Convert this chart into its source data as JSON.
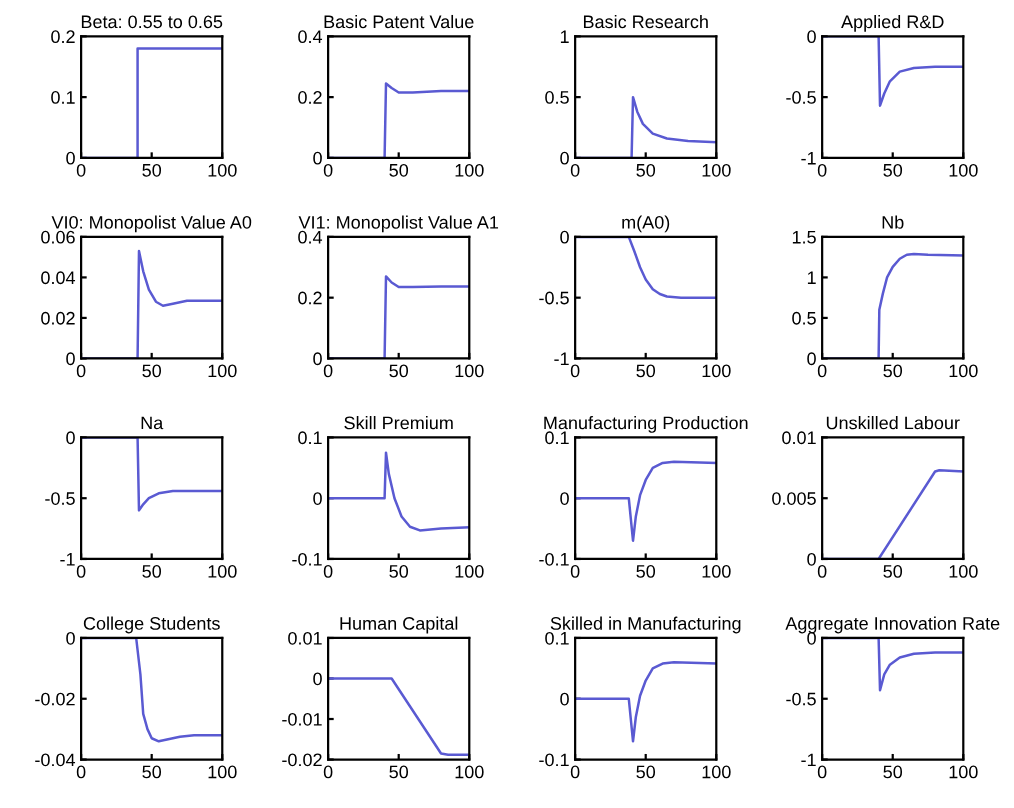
{
  "chart_data": [
    {
      "type": "line",
      "title": "Beta: 0.55 to 0.65",
      "x": [
        0,
        40,
        40,
        100
      ],
      "series": [
        {
          "color": "#5a5ad2",
          "values": [
            0,
            0,
            0.18,
            0.18
          ]
        }
      ],
      "xlim": [
        0,
        100
      ],
      "xticks": [
        0,
        50,
        100
      ],
      "ylim": [
        0,
        0.2
      ],
      "yticks": [
        0,
        0.1,
        0.2
      ]
    },
    {
      "type": "line",
      "title": "Basic Patent Value",
      "x": [
        0,
        40,
        41,
        45,
        50,
        60,
        80,
        100
      ],
      "series": [
        {
          "color": "#5a5ad2",
          "values": [
            0,
            0,
            0.245,
            0.23,
            0.215,
            0.215,
            0.22,
            0.22
          ]
        }
      ],
      "xlim": [
        0,
        100
      ],
      "xticks": [
        0,
        50,
        100
      ],
      "ylim": [
        0,
        0.4
      ],
      "yticks": [
        0,
        0.2,
        0.4
      ]
    },
    {
      "type": "line",
      "title": "Basic Research",
      "x": [
        0,
        40,
        41,
        44,
        48,
        55,
        65,
        80,
        100
      ],
      "series": [
        {
          "color": "#5a5ad2",
          "values": [
            0,
            0,
            0.5,
            0.38,
            0.28,
            0.2,
            0.16,
            0.14,
            0.13
          ]
        }
      ],
      "xlim": [
        0,
        100
      ],
      "xticks": [
        0,
        50,
        100
      ],
      "ylim": [
        0,
        1
      ],
      "yticks": [
        0,
        0.5,
        1
      ]
    },
    {
      "type": "line",
      "title": "Applied R&D",
      "x": [
        0,
        40,
        41,
        44,
        48,
        55,
        65,
        80,
        100
      ],
      "series": [
        {
          "color": "#5a5ad2",
          "values": [
            0,
            0,
            -0.57,
            -0.47,
            -0.37,
            -0.29,
            -0.26,
            -0.25,
            -0.25
          ]
        }
      ],
      "xlim": [
        0,
        100
      ],
      "xticks": [
        0,
        50,
        100
      ],
      "ylim": [
        -1,
        0
      ],
      "yticks": [
        -1,
        -0.5,
        0
      ]
    },
    {
      "type": "line",
      "title": "VI0: Monopolist Value A0",
      "x": [
        0,
        40,
        41,
        44,
        48,
        53,
        58,
        65,
        75,
        85,
        100
      ],
      "series": [
        {
          "color": "#5a5ad2",
          "values": [
            0,
            0,
            0.053,
            0.043,
            0.034,
            0.028,
            0.026,
            0.027,
            0.0285,
            0.0285,
            0.0285
          ]
        }
      ],
      "xlim": [
        0,
        100
      ],
      "xticks": [
        0,
        50,
        100
      ],
      "ylim": [
        0,
        0.06
      ],
      "yticks": [
        0,
        0.02,
        0.04,
        0.06
      ]
    },
    {
      "type": "line",
      "title": "VI1: Monopolist Value A1",
      "x": [
        0,
        40,
        41,
        45,
        50,
        60,
        80,
        100
      ],
      "series": [
        {
          "color": "#5a5ad2",
          "values": [
            0,
            0,
            0.27,
            0.25,
            0.235,
            0.235,
            0.237,
            0.237
          ]
        }
      ],
      "xlim": [
        0,
        100
      ],
      "xticks": [
        0,
        50,
        100
      ],
      "ylim": [
        0,
        0.4
      ],
      "yticks": [
        0,
        0.2,
        0.4
      ]
    },
    {
      "type": "line",
      "title": "m(A0)",
      "x": [
        0,
        38,
        42,
        46,
        50,
        55,
        60,
        65,
        75,
        100
      ],
      "series": [
        {
          "color": "#5a5ad2",
          "values": [
            0,
            0,
            -0.12,
            -0.25,
            -0.35,
            -0.43,
            -0.47,
            -0.49,
            -0.5,
            -0.5
          ]
        }
      ],
      "xlim": [
        0,
        100
      ],
      "xticks": [
        0,
        50,
        100
      ],
      "ylim": [
        -1,
        0
      ],
      "yticks": [
        -1,
        -0.5,
        0
      ]
    },
    {
      "type": "line",
      "title": "Nb",
      "x": [
        0,
        40,
        40.5,
        43,
        46,
        50,
        55,
        60,
        65,
        75,
        100
      ],
      "series": [
        {
          "color": "#5a5ad2",
          "values": [
            0,
            0,
            0.6,
            0.8,
            1.0,
            1.13,
            1.23,
            1.28,
            1.29,
            1.28,
            1.27
          ]
        }
      ],
      "xlim": [
        0,
        100
      ],
      "xticks": [
        0,
        50,
        100
      ],
      "ylim": [
        0,
        1.5
      ],
      "yticks": [
        0,
        0.5,
        1,
        1.5
      ]
    },
    {
      "type": "line",
      "title": "Na",
      "x": [
        0,
        40,
        41,
        44,
        48,
        55,
        65,
        80,
        100
      ],
      "series": [
        {
          "color": "#5a5ad2",
          "values": [
            0,
            0,
            -0.6,
            -0.55,
            -0.5,
            -0.46,
            -0.44,
            -0.44,
            -0.44
          ]
        }
      ],
      "xlim": [
        0,
        100
      ],
      "xticks": [
        0,
        50,
        100
      ],
      "ylim": [
        -1,
        0
      ],
      "yticks": [
        -1,
        -0.5,
        0
      ]
    },
    {
      "type": "line",
      "title": "Skill Premium",
      "x": [
        0,
        40,
        41,
        43,
        47,
        52,
        58,
        65,
        80,
        100
      ],
      "series": [
        {
          "color": "#5a5ad2",
          "values": [
            0,
            0,
            0.075,
            0.04,
            0,
            -0.03,
            -0.047,
            -0.053,
            -0.05,
            -0.048
          ]
        }
      ],
      "xlim": [
        0,
        100
      ],
      "xticks": [
        0,
        50,
        100
      ],
      "ylim": [
        -0.1,
        0.1
      ],
      "yticks": [
        -0.1,
        0,
        0.1
      ]
    },
    {
      "type": "line",
      "title": "Manufacturing Production",
      "x": [
        0,
        38,
        41,
        43,
        46,
        50,
        55,
        62,
        70,
        100
      ],
      "series": [
        {
          "color": "#5a5ad2",
          "values": [
            0,
            0,
            -0.07,
            -0.03,
            0.005,
            0.03,
            0.05,
            0.058,
            0.06,
            0.058
          ]
        }
      ],
      "xlim": [
        0,
        100
      ],
      "xticks": [
        0,
        50,
        100
      ],
      "ylim": [
        -0.1,
        0.1
      ],
      "yticks": [
        -0.1,
        0,
        0.1
      ]
    },
    {
      "type": "line",
      "title": "Unskilled Labour",
      "x": [
        0,
        40,
        80,
        83,
        100
      ],
      "series": [
        {
          "color": "#5a5ad2",
          "values": [
            0,
            0,
            0.0072,
            0.0073,
            0.0072
          ]
        }
      ],
      "xlim": [
        0,
        100
      ],
      "xticks": [
        0,
        50,
        100
      ],
      "ylim": [
        0,
        0.01
      ],
      "yticks": [
        0,
        0.005,
        0.01
      ]
    },
    {
      "type": "line",
      "title": "College Students",
      "x": [
        0,
        39,
        42,
        44,
        47,
        50,
        55,
        60,
        70,
        80,
        100
      ],
      "series": [
        {
          "color": "#5a5ad2",
          "values": [
            0,
            0,
            -0.012,
            -0.025,
            -0.03,
            -0.033,
            -0.034,
            -0.0335,
            -0.0325,
            -0.032,
            -0.032
          ]
        }
      ],
      "xlim": [
        0,
        100
      ],
      "xticks": [
        0,
        50,
        100
      ],
      "ylim": [
        -0.04,
        0
      ],
      "yticks": [
        -0.04,
        -0.02,
        0
      ]
    },
    {
      "type": "line",
      "title": "Human Capital",
      "x": [
        0,
        45,
        80,
        85,
        100
      ],
      "series": [
        {
          "color": "#5a5ad2",
          "values": [
            0,
            0,
            -0.0185,
            -0.0188,
            -0.0188
          ]
        }
      ],
      "xlim": [
        0,
        100
      ],
      "xticks": [
        0,
        50,
        100
      ],
      "ylim": [
        -0.02,
        0.01
      ],
      "yticks": [
        -0.02,
        -0.01,
        0,
        0.01
      ]
    },
    {
      "type": "line",
      "title": "Skilled in Manufacturing",
      "x": [
        0,
        38,
        41,
        43,
        46,
        50,
        55,
        62,
        70,
        100
      ],
      "series": [
        {
          "color": "#5a5ad2",
          "values": [
            0,
            0,
            -0.07,
            -0.03,
            0.005,
            0.03,
            0.05,
            0.058,
            0.06,
            0.058
          ]
        }
      ],
      "xlim": [
        0,
        100
      ],
      "xticks": [
        0,
        50,
        100
      ],
      "ylim": [
        -0.1,
        0.1
      ],
      "yticks": [
        -0.1,
        0,
        0.1
      ]
    },
    {
      "type": "line",
      "title": "Aggregate Innovation Rate",
      "x": [
        0,
        40,
        41,
        44,
        48,
        55,
        65,
        80,
        100
      ],
      "series": [
        {
          "color": "#5a5ad2",
          "values": [
            0,
            0,
            -0.43,
            -0.3,
            -0.22,
            -0.16,
            -0.13,
            -0.12,
            -0.12
          ]
        }
      ],
      "xlim": [
        0,
        100
      ],
      "xticks": [
        0,
        50,
        100
      ],
      "ylim": [
        -1,
        0
      ],
      "yticks": [
        -1,
        -0.5,
        0
      ]
    }
  ]
}
